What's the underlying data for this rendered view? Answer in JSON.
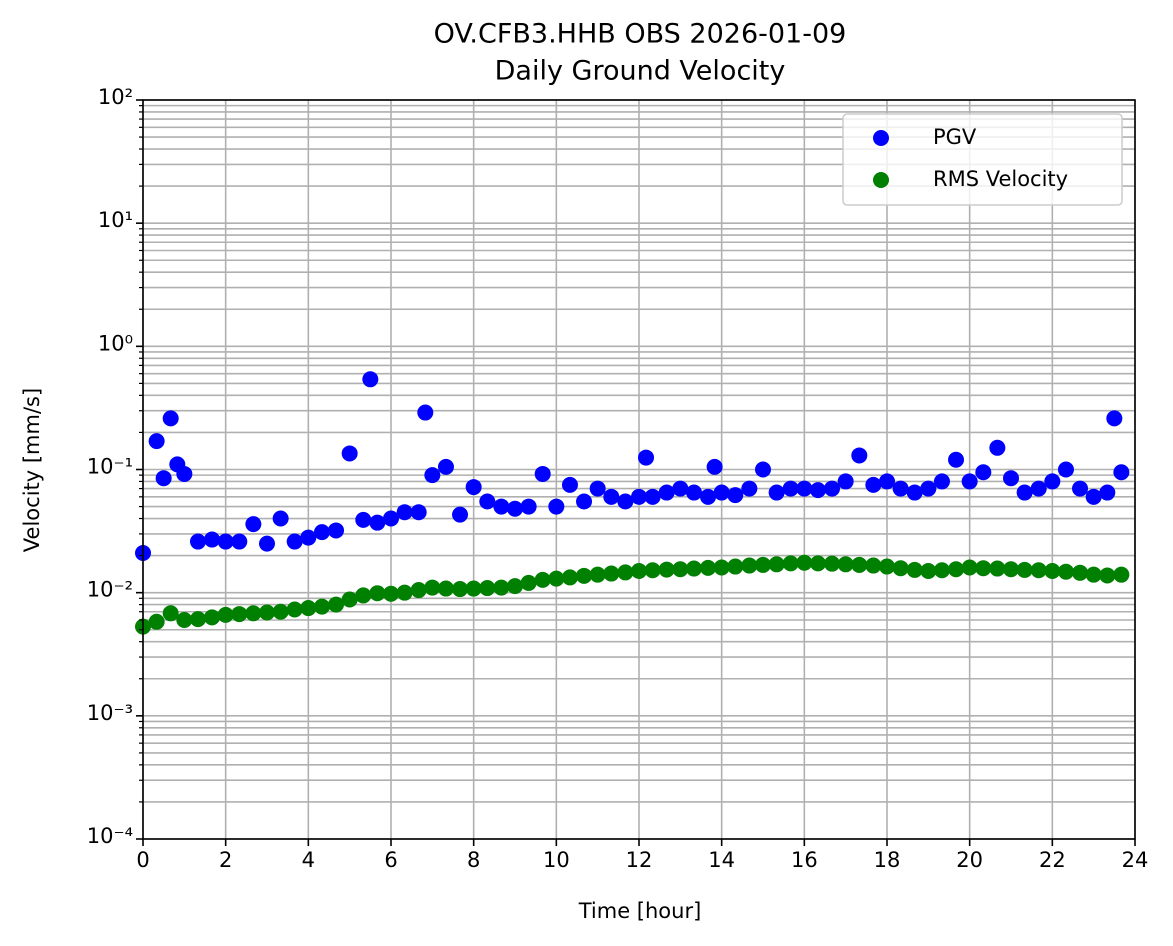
{
  "chart_data": {
    "type": "scatter",
    "title": "OV.CFB3.HHB OBS 2026-01-09",
    "subtitle": "Daily Ground Velocity",
    "xlabel": "Time [hour]",
    "ylabel": "Velocity [mm/s]",
    "xlim": [
      0,
      24
    ],
    "xticks": [
      0,
      2,
      4,
      6,
      8,
      10,
      12,
      14,
      16,
      18,
      20,
      22,
      24
    ],
    "ylim": [
      0.0001,
      100
    ],
    "yscale": "log",
    "yticks": [
      {
        "value": 0.0001,
        "label": "10⁻⁴"
      },
      {
        "value": 0.001,
        "label": "10⁻³"
      },
      {
        "value": 0.01,
        "label": "10⁻²"
      },
      {
        "value": 0.1,
        "label": "10⁻¹"
      },
      {
        "value": 1,
        "label": "10⁰"
      },
      {
        "value": 10,
        "label": "10¹"
      },
      {
        "value": 100,
        "label": "10²"
      }
    ],
    "yminorticks": [
      0.0002,
      0.0003,
      0.0004,
      0.0005,
      0.0006,
      0.0007,
      0.0008,
      0.0009,
      0.002,
      0.003,
      0.004,
      0.005,
      0.006,
      0.007,
      0.008,
      0.009,
      0.02,
      0.03,
      0.04,
      0.05,
      0.06,
      0.07,
      0.08,
      0.09,
      0.2,
      0.3,
      0.4,
      0.5,
      0.6,
      0.7,
      0.8,
      0.9,
      2,
      3,
      4,
      5,
      6,
      7,
      8,
      9,
      20,
      30,
      40,
      50,
      60,
      70,
      80,
      90
    ],
    "grid": true,
    "legend": "upper right",
    "series": [
      {
        "name": "PGV",
        "color": "#0000ff",
        "x": [
          0,
          0.33,
          0.5,
          0.67,
          0.83,
          1,
          1.33,
          1.67,
          2,
          2.33,
          2.67,
          3,
          3.33,
          3.67,
          4,
          4.33,
          4.67,
          5,
          5.33,
          5.5,
          5.67,
          6,
          6.33,
          6.67,
          6.83,
          7,
          7.33,
          7.67,
          8,
          8.33,
          8.67,
          9,
          9.33,
          9.67,
          10,
          10.33,
          10.67,
          11,
          11.33,
          11.67,
          12,
          12.17,
          12.33,
          12.67,
          13,
          13.33,
          13.67,
          13.83,
          14,
          14.33,
          14.67,
          15,
          15.33,
          15.67,
          16,
          16.33,
          16.67,
          17,
          17.33,
          17.67,
          18,
          18.33,
          18.67,
          19,
          19.33,
          19.67,
          20,
          20.33,
          20.67,
          21,
          21.33,
          21.67,
          22,
          22.33,
          22.67,
          23,
          23.33,
          23.5,
          23.67
        ],
        "values": [
          0.021,
          0.17,
          0.085,
          0.26,
          0.11,
          0.092,
          0.026,
          0.027,
          0.026,
          0.026,
          0.036,
          0.025,
          0.04,
          0.026,
          0.028,
          0.031,
          0.032,
          0.135,
          0.039,
          0.54,
          0.037,
          0.04,
          0.045,
          0.045,
          0.29,
          0.09,
          0.105,
          0.043,
          0.072,
          0.055,
          0.05,
          0.048,
          0.05,
          0.092,
          0.05,
          0.075,
          0.055,
          0.07,
          0.06,
          0.055,
          0.06,
          0.125,
          0.06,
          0.065,
          0.07,
          0.065,
          0.06,
          0.105,
          0.065,
          0.062,
          0.07,
          0.1,
          0.065,
          0.07,
          0.07,
          0.068,
          0.07,
          0.08,
          0.13,
          0.075,
          0.08,
          0.07,
          0.065,
          0.07,
          0.08,
          0.12,
          0.08,
          0.095,
          0.15,
          0.085,
          0.065,
          0.07,
          0.08,
          0.1,
          0.07,
          0.06,
          0.065,
          0.26,
          0.095
        ]
      },
      {
        "name": "RMS Velocity",
        "color": "#008000",
        "x": [
          0,
          0.33,
          0.67,
          1,
          1.33,
          1.67,
          2,
          2.33,
          2.67,
          3,
          3.33,
          3.67,
          4,
          4.33,
          4.67,
          5,
          5.33,
          5.67,
          6,
          6.33,
          6.67,
          7,
          7.33,
          7.67,
          8,
          8.33,
          8.67,
          9,
          9.33,
          9.67,
          10,
          10.33,
          10.67,
          11,
          11.33,
          11.67,
          12,
          12.33,
          12.67,
          13,
          13.33,
          13.67,
          14,
          14.33,
          14.67,
          15,
          15.33,
          15.67,
          16,
          16.33,
          16.67,
          17,
          17.33,
          17.67,
          18,
          18.33,
          18.67,
          19,
          19.33,
          19.67,
          20,
          20.33,
          20.67,
          21,
          21.33,
          21.67,
          22,
          22.33,
          22.67,
          23,
          23.33,
          23.67
        ],
        "values": [
          0.0053,
          0.0058,
          0.0068,
          0.006,
          0.0061,
          0.0063,
          0.0066,
          0.0067,
          0.0068,
          0.0069,
          0.007,
          0.0073,
          0.0075,
          0.0077,
          0.008,
          0.0088,
          0.0095,
          0.0099,
          0.0098,
          0.01,
          0.0105,
          0.011,
          0.0108,
          0.0107,
          0.0108,
          0.0109,
          0.011,
          0.0113,
          0.012,
          0.0127,
          0.013,
          0.0133,
          0.0137,
          0.014,
          0.0143,
          0.0146,
          0.015,
          0.0152,
          0.0154,
          0.0155,
          0.0157,
          0.0159,
          0.016,
          0.0163,
          0.0166,
          0.0168,
          0.017,
          0.0173,
          0.0175,
          0.0173,
          0.0172,
          0.017,
          0.0168,
          0.0166,
          0.0163,
          0.0158,
          0.0153,
          0.015,
          0.0152,
          0.0155,
          0.016,
          0.0158,
          0.0157,
          0.0155,
          0.0153,
          0.0152,
          0.015,
          0.0148,
          0.0145,
          0.014,
          0.0138,
          0.014
        ]
      }
    ]
  }
}
